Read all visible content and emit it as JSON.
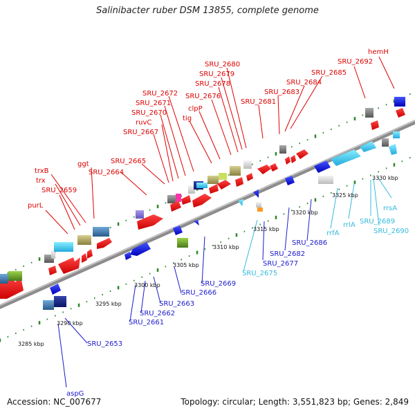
{
  "title": "Salinibacter ruber DSM 13855, complete genome",
  "accession": "Accession: NC_007677",
  "topology": "Topology: circular; Length: 3,551,823 bp; Genes: 2,849",
  "colors": {
    "upper_label": "#dd0000",
    "lower_label": "#1a1acc",
    "rna_label": "#33bbdd",
    "backbone": "#8c8c8c",
    "tick_dot": "#2a8a2a"
  },
  "kbp_ticks": [
    "3285 kbp",
    "3290 kbp",
    "3295 kbp",
    "3300 kbp",
    "3305 kbp",
    "3310 kbp",
    "3315 kbp",
    "3320 kbp",
    "3325 kbp",
    "3330 kbp"
  ],
  "upper_labels": [
    "purL",
    "SRU_2659",
    "trx",
    "trxB",
    "ggt",
    "SRU_2664",
    "SRU_2665",
    "SRU_2667",
    "ruvC",
    "SRU_2670",
    "SRU_2671",
    "SRU_2672",
    "tig",
    "clpP",
    "SRU_2676",
    "SRU_2678",
    "SRU_2679",
    "SRU_2680",
    "SRU_2681",
    "SRU_2683",
    "SRU_2684",
    "SRU_2685",
    "SRU_2692",
    "hemH"
  ],
  "lower_labels": [
    {
      "text": "aspG",
      "kind": "gene"
    },
    {
      "text": "SRU_2653",
      "kind": "gene"
    },
    {
      "text": "SRU_2661",
      "kind": "gene"
    },
    {
      "text": "SRU_2662",
      "kind": "gene"
    },
    {
      "text": "SRU_2663",
      "kind": "gene"
    },
    {
      "text": "SRU_2666",
      "kind": "gene"
    },
    {
      "text": "SRU_2669",
      "kind": "gene"
    },
    {
      "text": "SRU_2675",
      "kind": "rna"
    },
    {
      "text": "SRU_2677",
      "kind": "gene"
    },
    {
      "text": "SRU_2682",
      "kind": "gene"
    },
    {
      "text": "SRU_2686",
      "kind": "gene"
    },
    {
      "text": "rrfA",
      "kind": "rna"
    },
    {
      "text": "rrlA",
      "kind": "rna"
    },
    {
      "text": "SRU_2689",
      "kind": "rna"
    },
    {
      "text": "SRU_2690",
      "kind": "rna"
    },
    {
      "text": "rrsA",
      "kind": "rna"
    }
  ]
}
